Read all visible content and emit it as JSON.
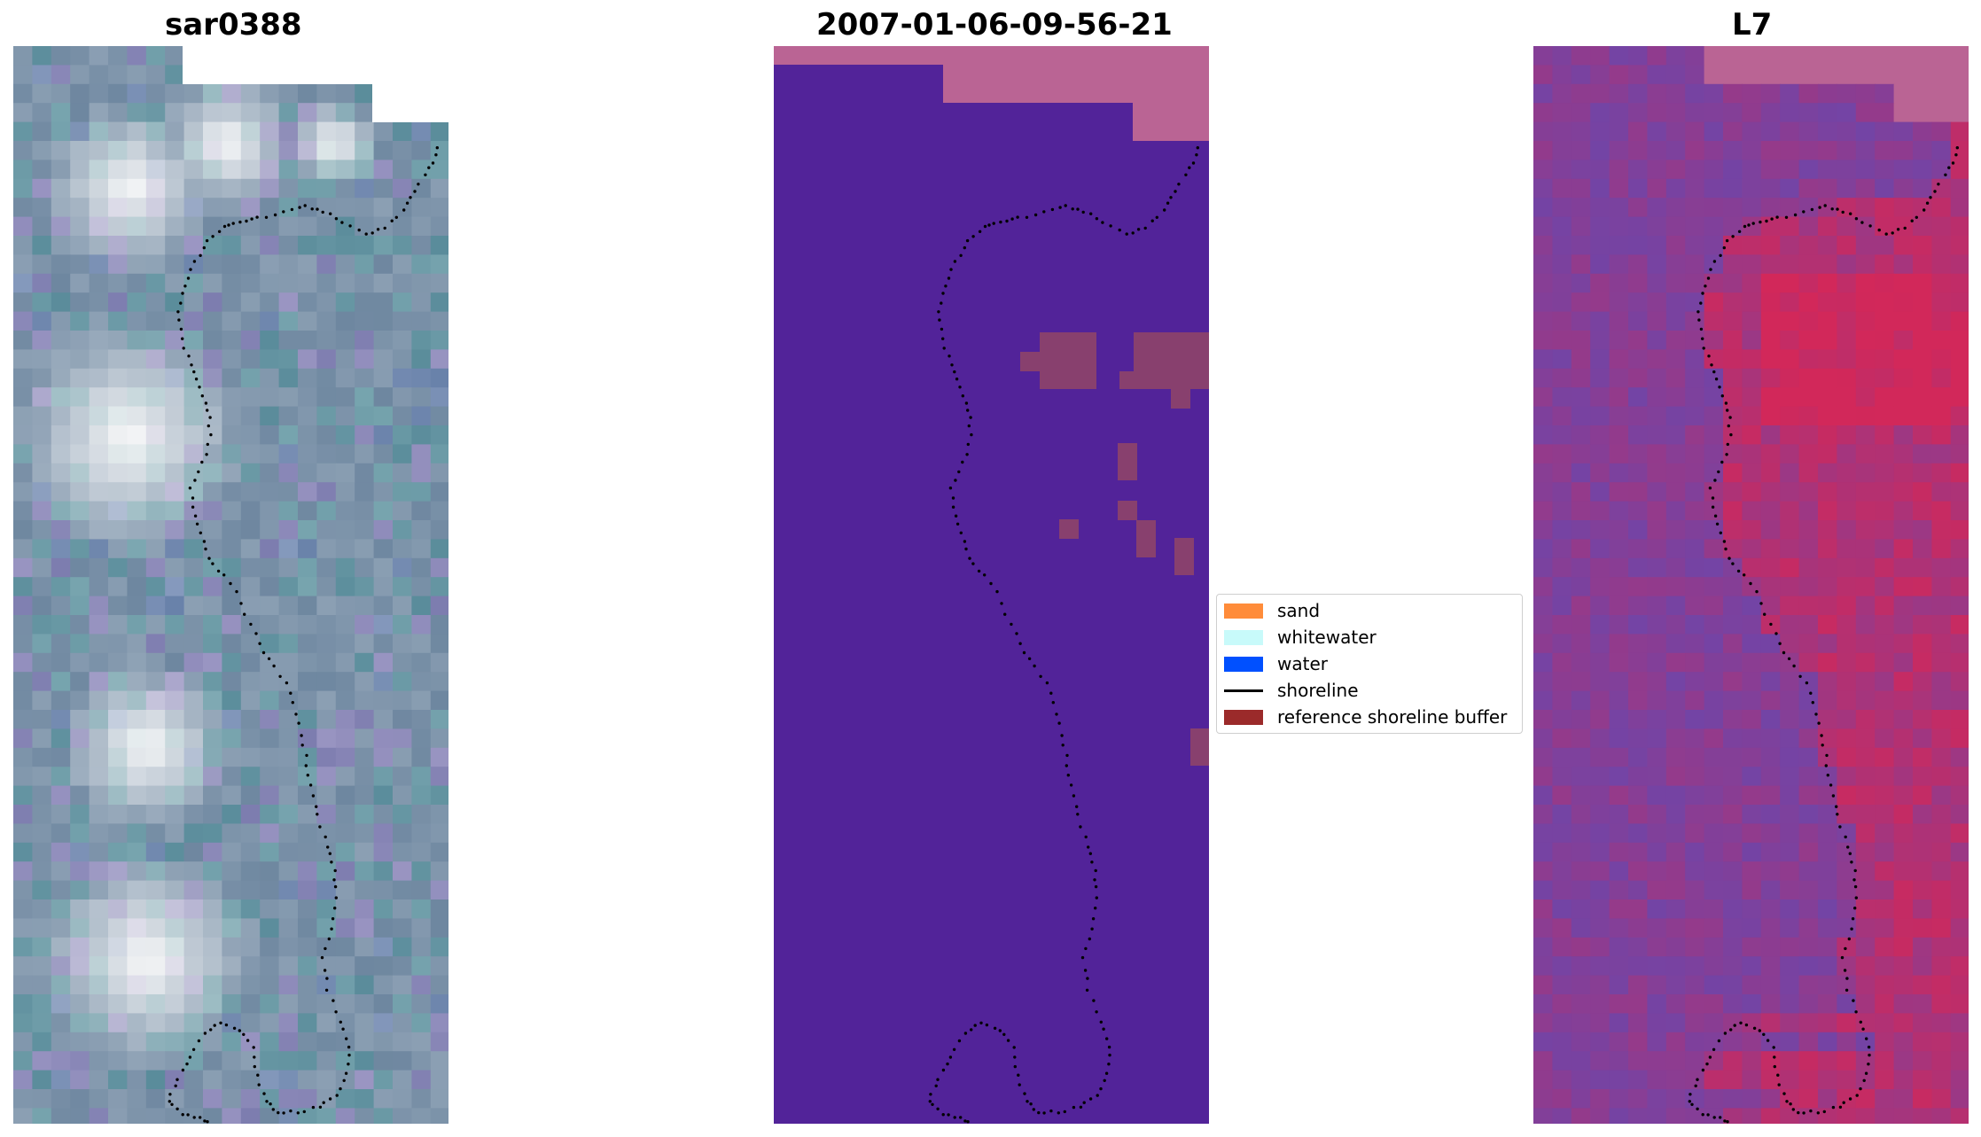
{
  "panels": [
    {
      "title": "sar0388"
    },
    {
      "title": "2007-01-06-09-56-21"
    },
    {
      "title": "L7"
    }
  ],
  "legend": [
    {
      "label": "sand",
      "color": "#ff8c3a"
    },
    {
      "label": "whitewater",
      "color": "#c8fafa"
    },
    {
      "label": "water",
      "color": "#0050ff"
    },
    {
      "label": "shoreline",
      "color": "#000000",
      "kind": "line"
    },
    {
      "label": "reference shoreline buffer",
      "color": "#9b2a2a"
    }
  ],
  "colors": {
    "classified_background": "#522399",
    "nodata_pink": "#ba6494",
    "buffer_overlay": "#88406e",
    "rgb_base": "#7c93a6",
    "l7_base": "#8c3fa4",
    "l7_hot": "#cc1e52"
  }
}
